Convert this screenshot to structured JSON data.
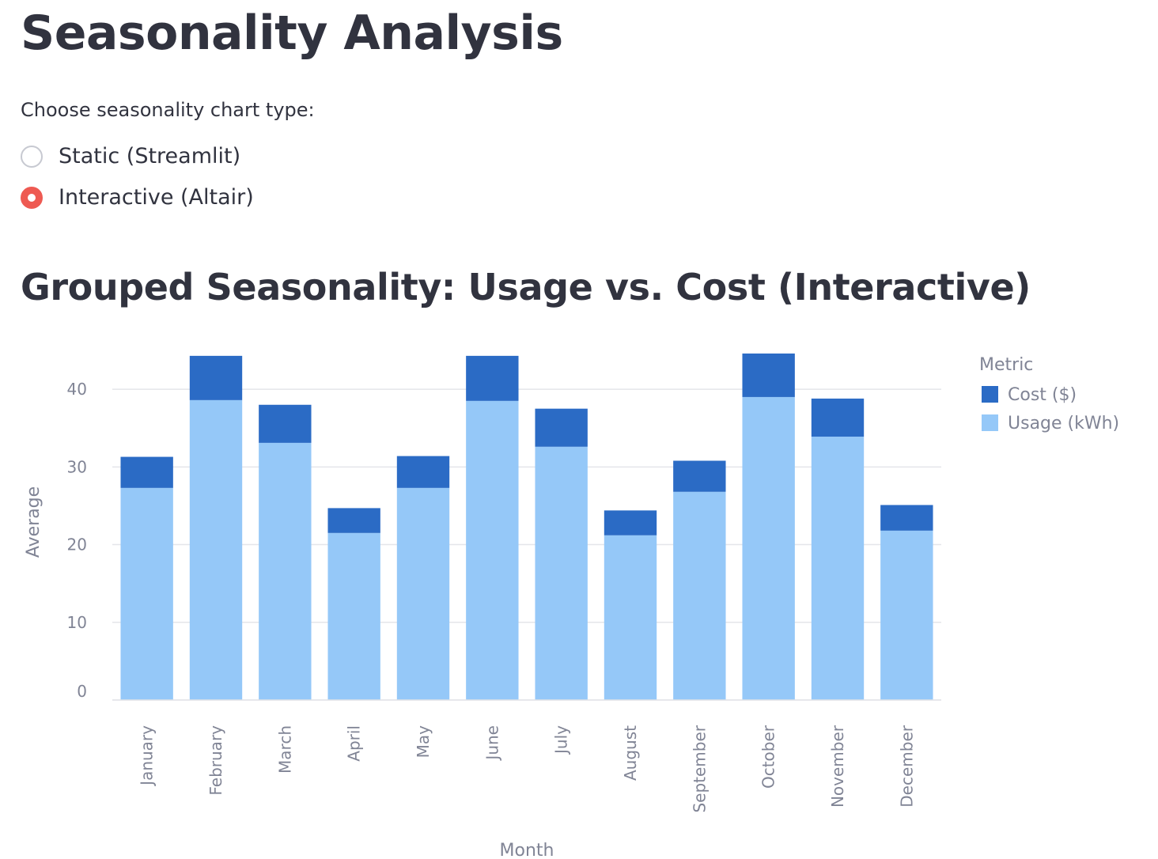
{
  "page": {
    "title": "Seasonality Analysis"
  },
  "chart_type_selector": {
    "label": "Choose seasonality chart type:",
    "options": [
      {
        "label": "Static (Streamlit)",
        "selected": false
      },
      {
        "label": "Interactive (Altair)",
        "selected": true
      }
    ],
    "accent_color": "#ee5a52"
  },
  "section": {
    "title": "Grouped Seasonality: Usage vs. Cost (Interactive)"
  },
  "chart_data": {
    "type": "bar",
    "stacked": true,
    "xlabel": "Month",
    "ylabel": "Average",
    "ylim": [
      0,
      45
    ],
    "yticks": [
      0,
      10,
      20,
      30,
      40
    ],
    "grid": true,
    "legend_title": "Metric",
    "legend_position": "right",
    "categories": [
      "January",
      "February",
      "March",
      "April",
      "May",
      "June",
      "July",
      "August",
      "September",
      "October",
      "November",
      "December"
    ],
    "series": [
      {
        "name": "Usage (kWh)",
        "color": "#95c8f8",
        "values": [
          27.3,
          38.6,
          33.1,
          21.5,
          27.3,
          38.5,
          32.6,
          21.2,
          26.8,
          39.0,
          33.9,
          21.8
        ]
      },
      {
        "name": "Cost ($)",
        "color": "#2b6bc5",
        "values": [
          4.0,
          5.7,
          4.9,
          3.2,
          4.1,
          5.8,
          4.9,
          3.2,
          4.0,
          5.6,
          4.9,
          3.3
        ]
      }
    ],
    "legend_order": [
      "Cost ($)",
      "Usage (kWh)"
    ]
  }
}
